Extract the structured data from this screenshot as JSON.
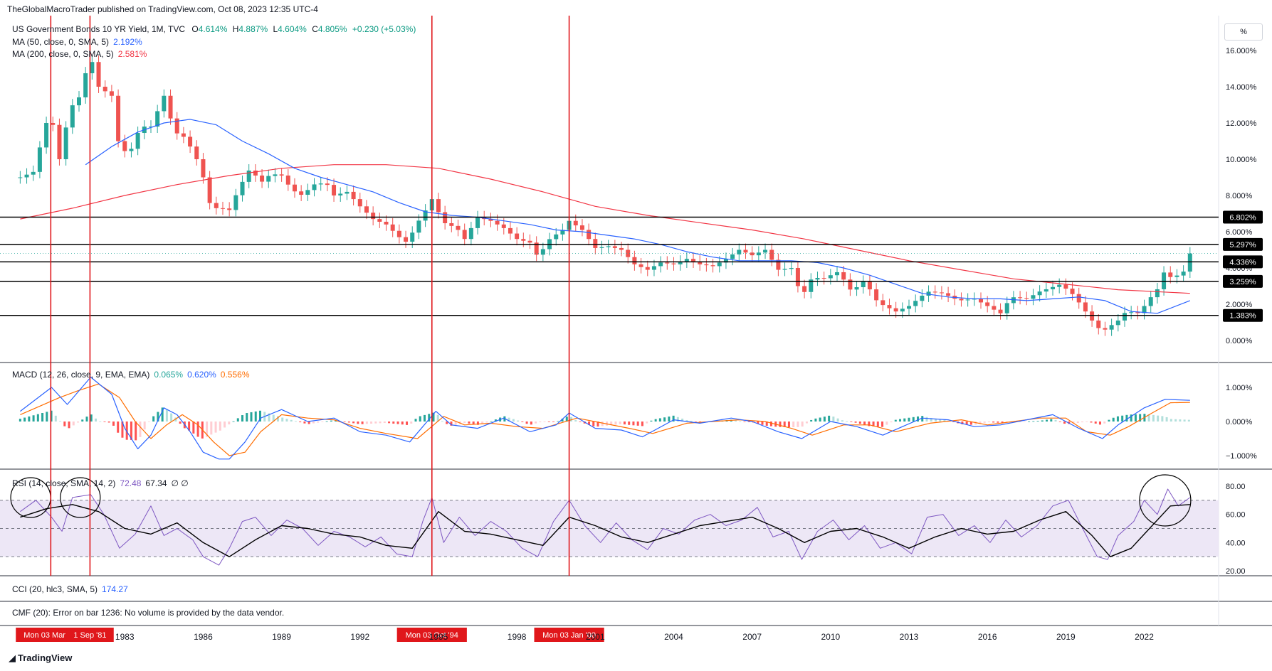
{
  "header": {
    "published_by": "TheGlobalMacroTrader published on TradingView.com, Oct 08, 2023 12:35 UTC-4"
  },
  "main_legend": {
    "symbol": "US Government Bonds 10 YR Yield, 1M, TVC",
    "o_label": "O",
    "o_value": "4.614%",
    "h_label": "H",
    "h_value": "4.887%",
    "l_label": "L",
    "l_value": "4.604%",
    "c_label": "C",
    "c_value": "4.805%",
    "change": "+0.230 (+5.03%)",
    "ma50_label": "MA (50, close, 0, SMA, 5)",
    "ma50_value": "2.192%",
    "ma200_label": "MA (200, close, 0, SMA, 5)",
    "ma200_value": "2.581%"
  },
  "axis_unit": "%",
  "macd_legend": {
    "label": "MACD (12, 26, close, 9, EMA, EMA)",
    "hist": "0.065%",
    "macd": "0.620%",
    "signal": "0.556%"
  },
  "rsi_legend": {
    "label": "RSI (14, close, SMA, 14, 2)",
    "rsi": "72.48",
    "ma": "67.34",
    "extra": "∅ ∅"
  },
  "cci_legend": {
    "label": "CCI (20, hlc3, SMA, 5)",
    "value": "174.27"
  },
  "cmf_legend": {
    "label": "CMF (20): Error on bar 1236: No volume is provided by the data vendor."
  },
  "footer": {
    "brand": "TradingView"
  },
  "colors": {
    "up": "#26a69a",
    "down": "#ef5350",
    "ma50": "#2962ff",
    "ma200": "#f23645",
    "macd": "#2962ff",
    "signal": "#ff6d00",
    "rsi": "#7e57c2",
    "rsi_band": "#ede7f6",
    "marker": "#e0171b"
  },
  "chart_data": [
    {
      "type": "line",
      "title": "US Government Bonds 10 YR Yield, 1M, TVC",
      "y_unit": "%",
      "y_ticks": [
        0,
        2,
        4,
        6,
        8,
        10,
        12,
        14,
        16
      ],
      "y_tick_labels": [
        "0.000%",
        "2.000%",
        "4.000%",
        "6.000%",
        "8.000%",
        "10.000%",
        "12.000%",
        "14.000%",
        "16.000%"
      ],
      "x_tick_labels": [
        "1983",
        "1986",
        "1989",
        "1992",
        "1995",
        "1998",
        "2001",
        "2004",
        "2007",
        "2010",
        "2013",
        "2016",
        "2019",
        "2022"
      ],
      "x_ticks": [
        1983,
        1986,
        1989,
        1992,
        1995,
        1998,
        2001,
        2004,
        2007,
        2010,
        2013,
        2016,
        2019,
        2022
      ],
      "series": [
        {
          "name": "US Government Bonds 10 YR Yield",
          "x": [
            1979.0,
            1979.5,
            1980.0,
            1980.17,
            1980.5,
            1980.9,
            1981.3,
            1981.67,
            1982.0,
            1982.5,
            1982.8,
            1983.2,
            1983.6,
            1984.0,
            1984.5,
            1984.9,
            1985.3,
            1985.7,
            1986.0,
            1986.3,
            1986.7,
            1987.0,
            1987.4,
            1987.8,
            1988.2,
            1988.6,
            1989.0,
            1989.4,
            1989.8,
            1990.2,
            1990.7,
            1991.0,
            1991.5,
            1992.0,
            1992.5,
            1993.0,
            1993.5,
            1993.8,
            1994.2,
            1994.6,
            1994.75,
            1995.2,
            1995.7,
            1996.0,
            1996.5,
            1997.0,
            1997.5,
            1998.0,
            1998.5,
            1998.8,
            1999.3,
            1999.7,
            2000.0,
            2000.5,
            2001.0,
            2001.5,
            2002.0,
            2002.5,
            2003.0,
            2003.5,
            2004.0,
            2004.5,
            2005.0,
            2005.5,
            2006.0,
            2006.5,
            2007.0,
            2007.5,
            2008.0,
            2008.5,
            2008.9,
            2009.3,
            2009.7,
            2010.3,
            2010.8,
            2011.3,
            2011.8,
            2012.5,
            2013.0,
            2013.7,
            2014.3,
            2014.9,
            2015.5,
            2016.5,
            2016.9,
            2017.5,
            2018.0,
            2018.8,
            2019.3,
            2019.7,
            2020.2,
            2020.5,
            2021.0,
            2021.3,
            2021.8,
            2022.2,
            2022.6,
            2022.8,
            2023.0,
            2023.3,
            2023.5,
            2023.75
          ],
          "y": [
            9.0,
            9.3,
            12.0,
            12.5,
            10.0,
            12.8,
            13.5,
            15.8,
            14.0,
            13.5,
            10.5,
            10.4,
            11.8,
            11.8,
            13.5,
            11.5,
            11.2,
            10.2,
            9.0,
            7.3,
            7.3,
            7.2,
            8.5,
            9.5,
            8.7,
            9.2,
            9.1,
            8.3,
            8.0,
            8.6,
            8.7,
            8.0,
            8.2,
            7.4,
            6.7,
            6.4,
            5.7,
            5.4,
            6.5,
            7.4,
            7.8,
            6.5,
            6.2,
            5.6,
            6.8,
            6.6,
            6.2,
            5.6,
            5.4,
            4.6,
            5.7,
            6.0,
            6.6,
            6.1,
            5.1,
            5.2,
            5.0,
            4.2,
            3.9,
            4.3,
            4.2,
            4.5,
            4.2,
            4.1,
            4.5,
            5.0,
            4.7,
            5.0,
            3.9,
            4.0,
            2.4,
            3.5,
            3.4,
            3.8,
            2.7,
            3.3,
            2.1,
            1.6,
            1.9,
            2.7,
            2.6,
            2.2,
            2.3,
            1.5,
            2.4,
            2.3,
            2.7,
            3.1,
            2.5,
            1.7,
            0.7,
            0.6,
            1.1,
            1.6,
            1.5,
            2.3,
            3.0,
            4.0,
            3.5,
            3.6,
            3.8,
            4.8
          ]
        },
        {
          "name": "MA (50, close, 0, SMA, 5)",
          "x": [
            1981.5,
            1982.5,
            1983.5,
            1984.5,
            1985.5,
            1986.5,
            1987.5,
            1988.5,
            1989.5,
            1990.5,
            1991.5,
            1992.5,
            1993.5,
            1994.5,
            1995.5,
            1996.5,
            1997.5,
            1998.5,
            1999.5,
            2000.5,
            2001.5,
            2002.5,
            2003.5,
            2004.5,
            2005.5,
            2006.5,
            2007.5,
            2008.5,
            2009.5,
            2010.5,
            2011.5,
            2012.5,
            2013.5,
            2014.5,
            2015.5,
            2016.5,
            2017.5,
            2018.5,
            2019.5,
            2020.5,
            2021.5,
            2022.5,
            2023.75
          ],
          "y": [
            9.7,
            10.7,
            11.5,
            12.0,
            12.2,
            11.9,
            11.0,
            10.3,
            9.5,
            9.0,
            8.6,
            8.2,
            7.6,
            7.1,
            6.9,
            6.8,
            6.6,
            6.4,
            6.1,
            6.0,
            5.8,
            5.6,
            5.3,
            4.9,
            4.6,
            4.4,
            4.4,
            4.4,
            4.3,
            4.0,
            3.6,
            3.1,
            2.6,
            2.4,
            2.3,
            2.3,
            2.2,
            2.3,
            2.4,
            2.2,
            1.6,
            1.5,
            2.2
          ]
        },
        {
          "name": "MA (200, close, 0, SMA, 5)",
          "x": [
            1979.0,
            1981.0,
            1983.0,
            1985.0,
            1987.0,
            1989.0,
            1991.0,
            1993.0,
            1995.0,
            1997.0,
            1999.0,
            2001.0,
            2003.0,
            2005.0,
            2007.0,
            2009.0,
            2011.0,
            2013.0,
            2015.0,
            2017.0,
            2019.0,
            2021.0,
            2023.75
          ],
          "y": [
            6.7,
            7.3,
            8.0,
            8.6,
            9.1,
            9.5,
            9.7,
            9.7,
            9.5,
            8.9,
            8.2,
            7.4,
            6.9,
            6.5,
            6.1,
            5.6,
            5.0,
            4.4,
            3.9,
            3.4,
            3.1,
            2.8,
            2.6
          ]
        }
      ],
      "horizontal_levels": [
        6.802,
        5.297,
        4.336,
        3.259,
        1.383
      ],
      "horizontal_level_labels": [
        "6.802%",
        "5.297%",
        "4.336%",
        "3.259%",
        "1.383%"
      ],
      "vertical_markers": [
        {
          "x": 1980.17,
          "label": "Mon 03 Mar '80"
        },
        {
          "x": 1981.67,
          "label": "1 Sep '81"
        },
        {
          "x": 1994.75,
          "label": "Mon 03 Oct '94"
        },
        {
          "x": 2000.0,
          "label": "Mon 03 Jan '00"
        }
      ]
    },
    {
      "type": "line",
      "title": "MACD (12, 26, close, 9, EMA, EMA)",
      "y_ticks": [
        -1,
        0,
        1
      ],
      "y_tick_labels": [
        "−1.000%",
        "0.000%",
        "1.000%"
      ],
      "series": [
        {
          "name": "MACD",
          "x": [
            1979.0,
            1980.2,
            1980.8,
            1981.7,
            1982.5,
            1983.0,
            1983.5,
            1984.0,
            1984.5,
            1985.0,
            1985.5,
            1986.0,
            1986.6,
            1987.0,
            1987.6,
            1988.2,
            1989.0,
            1990.0,
            1991.0,
            1992.0,
            1993.0,
            1993.9,
            1994.9,
            1995.5,
            1996.5,
            1997.5,
            1998.5,
            1999.5,
            2000.0,
            2001.0,
            2002.0,
            2002.8,
            2004.0,
            2005.0,
            2006.2,
            2007.0,
            2008.0,
            2008.9,
            2010.0,
            2011.0,
            2012.0,
            2013.5,
            2014.5,
            2015.5,
            2016.5,
            2017.5,
            2018.5,
            2019.5,
            2020.4,
            2021.0,
            2022.0,
            2022.8,
            2023.75
          ],
          "y": [
            0.3,
            1.0,
            0.5,
            1.3,
            0.8,
            -0.2,
            -0.8,
            -0.4,
            0.4,
            0.2,
            -0.3,
            -0.9,
            -1.1,
            -1.1,
            -0.6,
            0.1,
            0.35,
            0.0,
            0.1,
            -0.3,
            -0.4,
            -0.6,
            0.3,
            -0.1,
            -0.2,
            0.1,
            -0.3,
            -0.1,
            0.25,
            -0.2,
            -0.25,
            -0.45,
            0.05,
            -0.05,
            0.1,
            0.0,
            -0.3,
            -0.5,
            0.0,
            -0.15,
            -0.4,
            0.1,
            0.05,
            -0.15,
            -0.1,
            0.05,
            0.2,
            -0.2,
            -0.5,
            -0.1,
            0.4,
            0.65,
            0.62
          ]
        },
        {
          "name": "Signal",
          "x": [
            1979.0,
            1980.5,
            1981.2,
            1982.0,
            1982.8,
            1983.4,
            1984.0,
            1984.6,
            1985.2,
            1985.8,
            1986.4,
            1987.0,
            1987.6,
            1988.2,
            1989.0,
            1990.0,
            1991.0,
            1992.0,
            1993.0,
            1994.2,
            1995.2,
            1996.0,
            1997.0,
            1998.0,
            1999.0,
            2000.3,
            2001.3,
            2002.3,
            2003.2,
            2004.5,
            2005.5,
            2006.5,
            2007.5,
            2008.5,
            2009.3,
            2010.5,
            2011.5,
            2012.5,
            2013.8,
            2015.0,
            2016.0,
            2017.0,
            2018.0,
            2019.0,
            2019.8,
            2020.7,
            2021.4,
            2022.3,
            2023.0,
            2023.75
          ],
          "y": [
            0.2,
            0.7,
            0.9,
            1.1,
            0.7,
            0.0,
            -0.5,
            -0.1,
            0.2,
            -0.1,
            -0.6,
            -1.0,
            -0.9,
            -0.3,
            0.2,
            0.1,
            0.05,
            -0.2,
            -0.35,
            -0.5,
            0.15,
            -0.1,
            -0.05,
            -0.15,
            -0.2,
            0.1,
            -0.05,
            -0.2,
            -0.35,
            -0.05,
            0.0,
            0.05,
            0.0,
            -0.2,
            -0.4,
            -0.1,
            -0.1,
            -0.3,
            -0.05,
            0.05,
            -0.1,
            0.0,
            0.1,
            0.1,
            -0.3,
            -0.4,
            -0.15,
            0.25,
            0.55,
            0.56
          ]
        }
      ]
    },
    {
      "type": "line",
      "title": "RSI (14, close, SMA, 14, 2)",
      "y_ticks": [
        20,
        40,
        60,
        80
      ],
      "y_tick_labels": [
        "20.00",
        "40.00",
        "60.00",
        "80.00"
      ],
      "bands": [
        30,
        50,
        70
      ],
      "series": [
        {
          "name": "RSI",
          "x": [
            1979.0,
            1979.6,
            1980.2,
            1980.6,
            1981.0,
            1981.7,
            1982.2,
            1982.8,
            1983.4,
            1984.0,
            1984.5,
            1985.0,
            1985.6,
            1986.0,
            1986.6,
            1987.0,
            1987.5,
            1988.0,
            1988.6,
            1989.2,
            1989.8,
            1990.4,
            1991.0,
            1991.6,
            1992.2,
            1992.8,
            1993.4,
            1994.0,
            1994.4,
            1994.75,
            1995.2,
            1995.8,
            1996.4,
            1997.0,
            1997.6,
            1998.2,
            1998.8,
            1999.4,
            2000.0,
            2000.6,
            2001.2,
            2001.8,
            2002.4,
            2003.0,
            2003.6,
            2004.2,
            2004.8,
            2005.4,
            2006.0,
            2006.6,
            2007.2,
            2007.8,
            2008.4,
            2008.9,
            2009.5,
            2010.1,
            2010.7,
            2011.3,
            2011.9,
            2012.5,
            2013.1,
            2013.7,
            2014.3,
            2014.9,
            2015.5,
            2016.1,
            2016.7,
            2017.3,
            2017.9,
            2018.5,
            2019.1,
            2019.7,
            2020.2,
            2020.6,
            2021.0,
            2021.6,
            2022.0,
            2022.5,
            2022.9,
            2023.3,
            2023.75
          ],
          "y": [
            62,
            70,
            58,
            48,
            72,
            74,
            60,
            36,
            46,
            66,
            45,
            50,
            42,
            30,
            24,
            36,
            55,
            58,
            45,
            56,
            50,
            38,
            48,
            44,
            37,
            44,
            32,
            30,
            55,
            72,
            40,
            58,
            45,
            55,
            48,
            36,
            30,
            55,
            70,
            52,
            40,
            54,
            42,
            35,
            50,
            46,
            56,
            60,
            52,
            56,
            65,
            44,
            48,
            28,
            48,
            56,
            42,
            52,
            36,
            40,
            32,
            58,
            60,
            45,
            52,
            40,
            56,
            44,
            52,
            66,
            70,
            48,
            30,
            28,
            45,
            55,
            70,
            60,
            78,
            66,
            72
          ]
        },
        {
          "name": "RSI-based MA",
          "x": [
            1979.0,
            1980.0,
            1981.0,
            1982.0,
            1983.0,
            1984.0,
            1985.0,
            1986.0,
            1987.0,
            1988.0,
            1989.0,
            1990.0,
            1991.0,
            1992.0,
            1993.0,
            1994.0,
            1995.0,
            1996.0,
            1997.0,
            1998.0,
            1999.0,
            2000.0,
            2001.0,
            2002.0,
            2003.0,
            2004.0,
            2005.0,
            2006.0,
            2007.0,
            2008.0,
            2009.0,
            2010.0,
            2011.0,
            2012.0,
            2013.0,
            2014.0,
            2015.0,
            2016.0,
            2017.0,
            2018.0,
            2019.0,
            2020.0,
            2020.7,
            2021.5,
            2022.3,
            2023.0,
            2023.75
          ],
          "y": [
            58,
            64,
            67,
            62,
            50,
            46,
            54,
            40,
            30,
            42,
            52,
            50,
            46,
            44,
            38,
            36,
            62,
            48,
            46,
            42,
            38,
            58,
            52,
            44,
            40,
            46,
            52,
            55,
            58,
            50,
            40,
            48,
            50,
            44,
            36,
            44,
            50,
            46,
            48,
            56,
            62,
            45,
            30,
            36,
            52,
            66,
            67
          ]
        }
      ]
    }
  ]
}
